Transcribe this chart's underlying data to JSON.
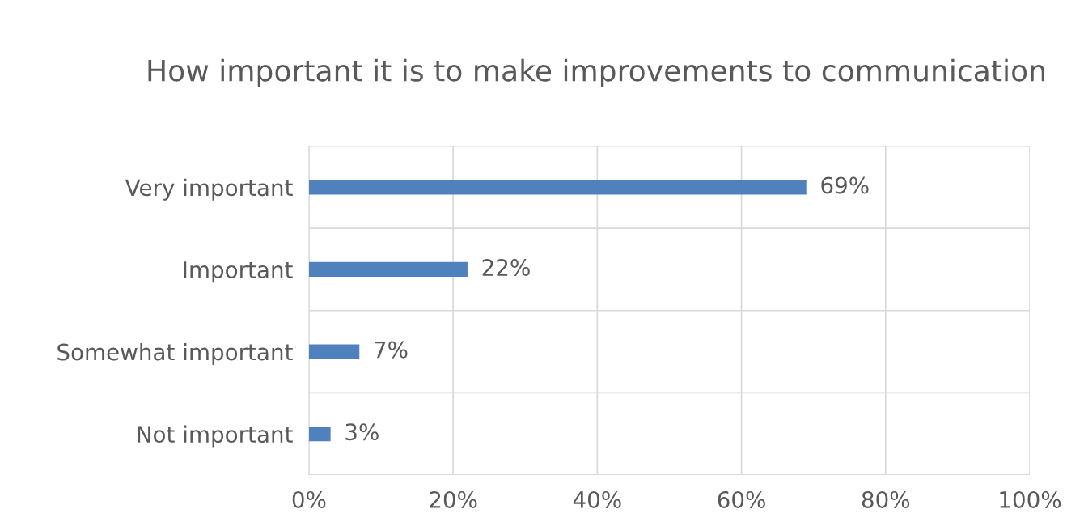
{
  "chart_data": {
    "type": "bar",
    "orientation": "horizontal",
    "title": "How important it is to make improvements to communication",
    "categories": [
      "Very important",
      "Important",
      "Somewhat important",
      "Not important"
    ],
    "values": [
      69,
      22,
      7,
      3
    ],
    "color": "#4f81bd",
    "value_labels": [
      "69%",
      "22%",
      "7%",
      "3%"
    ],
    "xlim": [
      0,
      100
    ],
    "xticks": [
      {
        "value": 0,
        "label": "0%"
      },
      {
        "value": 20,
        "label": "20%"
      },
      {
        "value": 40,
        "label": "40%"
      },
      {
        "value": 60,
        "label": "60%"
      },
      {
        "value": 80,
        "label": "80%"
      },
      {
        "value": 100,
        "label": "100%"
      }
    ],
    "grid": true,
    "legend": false
  }
}
